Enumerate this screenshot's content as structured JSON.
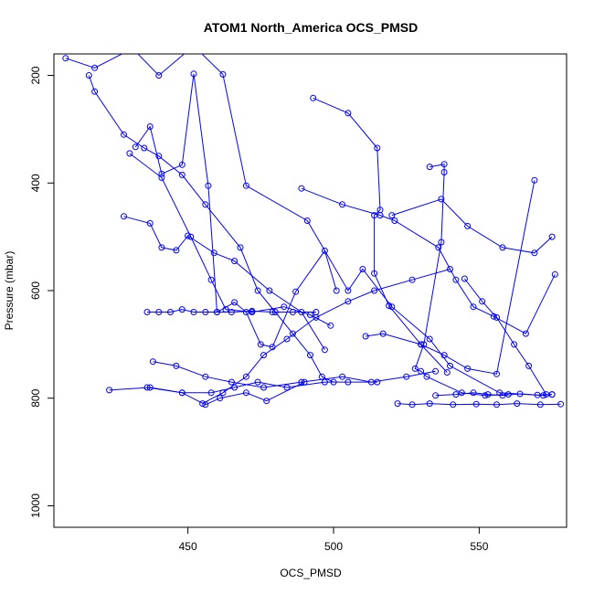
{
  "chart_data": {
    "type": "line",
    "title": "ATOM1 North_America OCS_PMSD",
    "xlabel": "OCS_PMSD",
    "ylabel": "Pressure (mbar)",
    "xlim": [
      404,
      580
    ],
    "ylim": [
      1040,
      160
    ],
    "y_reversed": true,
    "x_ticks": [
      450,
      500,
      550
    ],
    "y_ticks": [
      200,
      400,
      600,
      800,
      1000
    ],
    "grid": false,
    "color": "#0000ff",
    "marker": "open-circle",
    "series": [
      {
        "x": [
          408,
          418,
          431,
          440,
          452,
          462,
          470,
          491,
          505,
          510,
          520,
          533,
          540,
          557,
          572,
          575
        ],
        "y": [
          168,
          186,
          150,
          200,
          145,
          198,
          405,
          470,
          600,
          560,
          630,
          690,
          740,
          790,
          795,
          793
        ]
      },
      {
        "x": [
          416,
          418,
          428,
          435,
          440,
          448,
          456,
          468,
          474,
          480,
          486,
          492,
          496,
          500
        ],
        "y": [
          200,
          230,
          310,
          335,
          350,
          385,
          440,
          520,
          600,
          640,
          680,
          720,
          760,
          770
        ]
      },
      {
        "x": [
          428,
          437,
          441,
          446,
          450,
          459,
          466,
          478,
          489,
          497
        ],
        "y": [
          462,
          475,
          520,
          525,
          498,
          530,
          545,
          600,
          640,
          710
        ]
      },
      {
        "x": [
          432,
          437,
          441,
          448,
          452,
          457,
          460,
          466,
          470,
          475,
          479,
          487,
          497,
          501
        ],
        "y": [
          333,
          295,
          383,
          366,
          197,
          405,
          640,
          622,
          640,
          700,
          705,
          602,
          526,
          600
        ]
      },
      {
        "x": [
          430,
          441,
          451,
          458,
          463,
          472,
          483,
          492,
          499
        ],
        "y": [
          345,
          390,
          500,
          580,
          635,
          640,
          630,
          645,
          665
        ]
      },
      {
        "x": [
          436,
          440,
          444,
          448,
          452,
          456,
          460,
          465,
          472,
          479,
          486,
          494
        ],
        "y": [
          640,
          640,
          640,
          635,
          640,
          640,
          640,
          640,
          638,
          640,
          640,
          640
        ]
      },
      {
        "x": [
          438,
          446,
          456,
          465,
          476,
          489,
          503,
          513,
          525,
          535
        ],
        "y": [
          732,
          740,
          760,
          770,
          780,
          770,
          760,
          770,
          760,
          750
        ]
      },
      {
        "x": [
          423,
          437,
          448,
          458,
          466,
          474,
          484,
          497,
          505,
          515
        ],
        "y": [
          785,
          780,
          790,
          790,
          780,
          770,
          780,
          770,
          770,
          770
        ]
      },
      {
        "x": [
          436,
          448,
          456,
          461,
          470,
          477,
          490
        ],
        "y": [
          780,
          790,
          812,
          800,
          790,
          805,
          770
        ]
      },
      {
        "x": [
          493,
          505,
          515,
          516,
          514,
          514,
          519,
          530,
          539
        ],
        "y": [
          242,
          270,
          335,
          450,
          460,
          568,
          628,
          700,
          752
        ]
      },
      {
        "x": [
          489,
          503,
          516,
          521,
          536,
          542,
          548,
          555,
          566,
          576
        ],
        "y": [
          410,
          440,
          460,
          470,
          520,
          580,
          630,
          648,
          680,
          570
        ]
      },
      {
        "x": [
          533,
          538,
          538,
          537,
          531,
          528,
          530,
          532,
          544,
          552,
          560
        ],
        "y": [
          370,
          365,
          380,
          510,
          700,
          745,
          750,
          760,
          790,
          795,
          793
        ]
      },
      {
        "x": [
          520,
          537,
          546,
          558,
          569,
          575
        ],
        "y": [
          460,
          430,
          480,
          520,
          530,
          500
        ]
      },
      {
        "x": [
          511,
          517,
          530,
          538,
          546,
          556,
          569
        ],
        "y": [
          685,
          680,
          700,
          720,
          745,
          755,
          395
        ]
      },
      {
        "x": [
          522,
          527,
          533,
          541,
          549,
          556,
          563,
          571,
          578
        ],
        "y": [
          810,
          812,
          810,
          812,
          811,
          812,
          810,
          812,
          811
        ]
      },
      {
        "x": [
          535,
          542,
          548,
          553,
          558,
          564,
          570,
          575
        ],
        "y": [
          795,
          793,
          790,
          793,
          795,
          792,
          794,
          793
        ]
      },
      {
        "x": [
          545,
          551,
          556,
          562,
          567,
          573
        ],
        "y": [
          578,
          620,
          650,
          700,
          740,
          793
        ]
      },
      {
        "x": [
          455,
          462,
          470,
          476,
          484,
          494,
          505,
          514,
          527,
          540
        ],
        "y": [
          810,
          790,
          760,
          720,
          690,
          650,
          620,
          600,
          580,
          560
        ]
      }
    ]
  }
}
